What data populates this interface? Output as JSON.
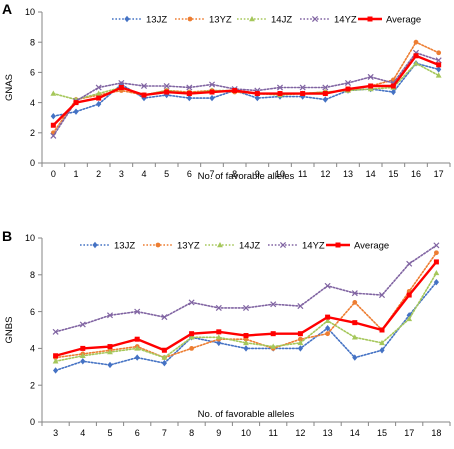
{
  "chart_data": [
    {
      "panel": "A",
      "type": "line",
      "xlabel": "No. of favorable alleles",
      "ylabel": "GNAS",
      "categories": [
        "0",
        "1",
        "2",
        "3",
        "4",
        "5",
        "6",
        "7",
        "8",
        "9",
        "10",
        "11",
        "12",
        "13",
        "14",
        "15",
        "16",
        "17"
      ],
      "ylim": [
        0,
        10
      ],
      "yticks": [
        0,
        2,
        4,
        6,
        8,
        10
      ],
      "grid": false,
      "legend_position": "top",
      "series": [
        {
          "name": "13JZ",
          "color": "#4472C4",
          "marker": "diamond",
          "dash": "dotted",
          "values": [
            3.1,
            3.4,
            3.9,
            5.2,
            4.3,
            4.5,
            4.3,
            4.3,
            4.8,
            4.3,
            4.4,
            4.4,
            4.2,
            4.8,
            4.9,
            4.7,
            6.6,
            6.2
          ]
        },
        {
          "name": "13YZ",
          "color": "#ED7D31",
          "marker": "circle",
          "dash": "dotted",
          "values": [
            2.0,
            4.2,
            4.5,
            4.8,
            4.5,
            4.8,
            4.7,
            4.8,
            4.7,
            4.6,
            4.6,
            4.6,
            4.7,
            4.8,
            5.1,
            5.5,
            8.0,
            7.3
          ]
        },
        {
          "name": "14JZ",
          "color": "#A5C75A",
          "marker": "triangle",
          "dash": "dotted",
          "values": [
            4.6,
            4.2,
            4.6,
            5.0,
            4.5,
            4.8,
            4.6,
            4.8,
            4.8,
            4.6,
            4.5,
            4.6,
            4.7,
            4.8,
            4.9,
            5.0,
            6.6,
            5.8
          ]
        },
        {
          "name": "14YZ",
          "color": "#8064A2",
          "marker": "x",
          "dash": "dotted",
          "values": [
            1.8,
            4.1,
            5.0,
            5.3,
            5.1,
            5.1,
            5.0,
            5.2,
            4.9,
            4.8,
            5.0,
            5.0,
            5.0,
            5.3,
            5.7,
            5.3,
            7.3,
            6.8
          ]
        },
        {
          "name": "Average",
          "color": "#FF0000",
          "marker": "square",
          "dash": "solid",
          "values": [
            2.5,
            4.0,
            4.3,
            5.0,
            4.5,
            4.7,
            4.6,
            4.7,
            4.8,
            4.6,
            4.6,
            4.6,
            4.6,
            4.9,
            5.1,
            5.1,
            7.1,
            6.5
          ]
        }
      ]
    },
    {
      "panel": "B",
      "type": "line",
      "xlabel": "No. of favorable alleles",
      "ylabel": "GNBS",
      "categories": [
        "3",
        "4",
        "5",
        "6",
        "7",
        "8",
        "9",
        "10",
        "11",
        "12",
        "13",
        "14",
        "15",
        "17",
        "18"
      ],
      "ylim": [
        0,
        10
      ],
      "yticks": [
        0,
        2,
        4,
        6,
        8,
        10
      ],
      "grid": false,
      "legend_position": "top",
      "series": [
        {
          "name": "13JZ",
          "color": "#4472C4",
          "marker": "diamond",
          "dash": "dotted",
          "values": [
            2.8,
            3.3,
            3.1,
            3.5,
            3.2,
            4.6,
            4.3,
            4.0,
            4.0,
            4.0,
            5.1,
            3.5,
            3.9,
            5.8,
            7.6
          ]
        },
        {
          "name": "13YZ",
          "color": "#ED7D31",
          "marker": "circle",
          "dash": "dotted",
          "values": [
            3.5,
            3.7,
            3.9,
            4.1,
            3.5,
            4.0,
            4.5,
            4.5,
            4.0,
            4.5,
            4.8,
            6.5,
            5.0,
            7.1,
            9.2
          ]
        },
        {
          "name": "14JZ",
          "color": "#A5C75A",
          "marker": "triangle",
          "dash": "dotted",
          "values": [
            3.3,
            3.6,
            3.8,
            4.0,
            3.5,
            4.6,
            4.6,
            4.3,
            4.1,
            4.3,
            5.5,
            4.6,
            4.3,
            5.6,
            8.1
          ]
        },
        {
          "name": "14YZ",
          "color": "#8064A2",
          "marker": "x",
          "dash": "dotted",
          "values": [
            4.9,
            5.3,
            5.8,
            6.0,
            5.7,
            6.5,
            6.2,
            6.2,
            6.4,
            6.3,
            7.4,
            7.0,
            6.9,
            8.6,
            9.6
          ]
        },
        {
          "name": "Average",
          "color": "#FF0000",
          "marker": "square",
          "dash": "solid",
          "values": [
            3.6,
            4.0,
            4.1,
            4.5,
            3.9,
            4.8,
            4.9,
            4.7,
            4.8,
            4.8,
            5.7,
            5.4,
            5.0,
            6.9,
            8.7
          ]
        }
      ]
    }
  ]
}
